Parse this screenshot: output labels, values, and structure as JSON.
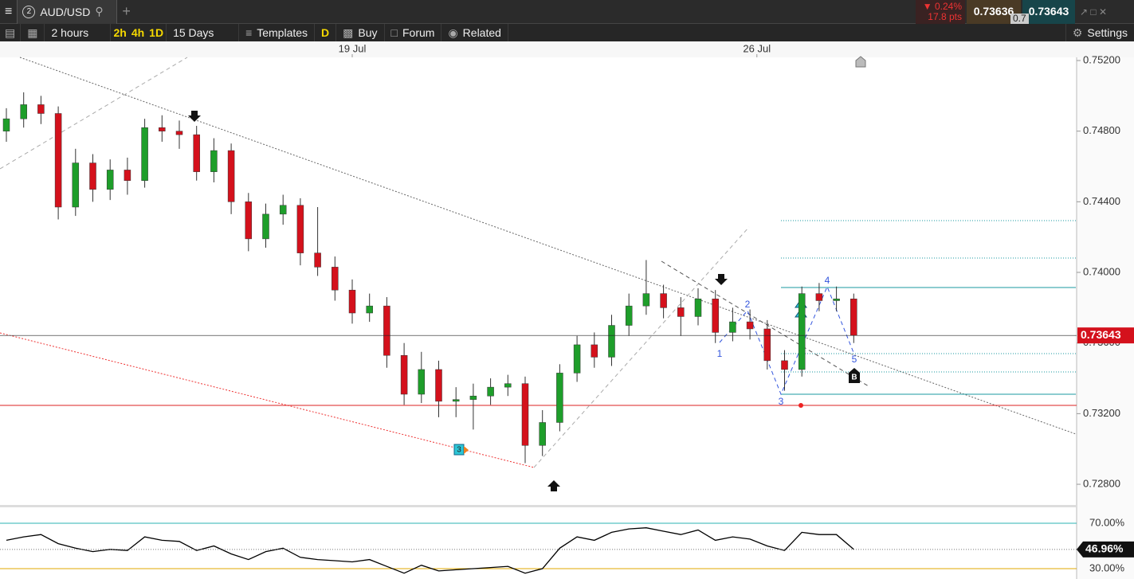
{
  "toolbar": {
    "tab_number": "2",
    "symbol": "AUD/USD",
    "change_pct": "0.24%",
    "change_pts": "17.8 pts",
    "sell": "0.73636",
    "buy": "0.73643",
    "spread": "0.7",
    "interval": "2 hours",
    "quick_intervals": [
      "2h",
      "4h",
      "1D"
    ],
    "range": "15 Days",
    "templates": "Templates",
    "d": "D",
    "buy_button": "Buy",
    "forum": "Forum",
    "related": "Related",
    "settings": "Settings"
  },
  "annotations": {
    "wave_labels": [
      "1",
      "2",
      "3",
      "4",
      "5"
    ],
    "badges": [
      "3",
      "B"
    ]
  },
  "chart_data": [
    {
      "type": "candlestick",
      "open": [
        0.748,
        0.7487,
        0.7495,
        0.749,
        0.7437,
        0.7462,
        0.7447,
        0.7458,
        0.7452,
        0.7482,
        0.748,
        0.7478,
        0.7457,
        0.7469,
        0.744,
        0.7419,
        0.7433,
        0.7438,
        0.7411,
        0.7403,
        0.739,
        0.7377,
        0.7381,
        0.7353,
        0.7331,
        0.7345,
        0.7327,
        0.7328,
        0.733,
        0.7335,
        0.7337,
        0.7302,
        0.7315,
        0.7343,
        0.7359,
        0.7352,
        0.737,
        0.7381,
        0.7388,
        0.738,
        0.7375,
        0.7385,
        0.7366,
        0.7372,
        0.7368,
        0.735,
        0.7345,
        0.7388,
        0.7384,
        0.7385
      ],
      "high": [
        0.7493,
        0.7502,
        0.75,
        0.7494,
        0.747,
        0.7467,
        0.7464,
        0.7465,
        0.7487,
        0.7489,
        0.7486,
        0.7483,
        0.7476,
        0.7473,
        0.7445,
        0.7439,
        0.7444,
        0.7442,
        0.7437,
        0.7409,
        0.7396,
        0.7388,
        0.7386,
        0.736,
        0.7355,
        0.735,
        0.7335,
        0.7337,
        0.734,
        0.7342,
        0.7341,
        0.7322,
        0.7348,
        0.7364,
        0.7366,
        0.7376,
        0.7388,
        0.7407,
        0.7393,
        0.7386,
        0.7391,
        0.739,
        0.738,
        0.7379,
        0.7373,
        0.7356,
        0.7392,
        0.7394,
        0.7392,
        0.7388
      ],
      "low": [
        0.7474,
        0.7482,
        0.7484,
        0.743,
        0.7432,
        0.744,
        0.7441,
        0.7444,
        0.7448,
        0.7474,
        0.747,
        0.7452,
        0.7451,
        0.7433,
        0.7412,
        0.7414,
        0.7427,
        0.7404,
        0.7398,
        0.7384,
        0.7371,
        0.7372,
        0.7346,
        0.7325,
        0.7326,
        0.7318,
        0.7318,
        0.7311,
        0.7325,
        0.733,
        0.7292,
        0.7296,
        0.731,
        0.7338,
        0.7346,
        0.7347,
        0.7364,
        0.7376,
        0.7374,
        0.7364,
        0.737,
        0.736,
        0.7361,
        0.7362,
        0.7345,
        0.7333,
        0.7341,
        0.7378,
        0.7378,
        0.736
      ],
      "close": [
        0.7487,
        0.7495,
        0.749,
        0.7437,
        0.7462,
        0.7447,
        0.7458,
        0.7452,
        0.7482,
        0.748,
        0.7478,
        0.7457,
        0.7469,
        0.744,
        0.7419,
        0.7433,
        0.7438,
        0.7411,
        0.7403,
        0.739,
        0.7377,
        0.7381,
        0.7353,
        0.7331,
        0.7345,
        0.7327,
        0.7328,
        0.733,
        0.7335,
        0.7337,
        0.7302,
        0.7315,
        0.7343,
        0.7359,
        0.7352,
        0.737,
        0.7381,
        0.7388,
        0.738,
        0.7375,
        0.7385,
        0.7366,
        0.7372,
        0.7368,
        0.735,
        0.7345,
        0.7388,
        0.7384,
        0.7385,
        0.73643
      ],
      "up_color": "#1e9e2a",
      "down_color": "#d4111c",
      "xticks": [
        {
          "value": 20,
          "label": "19 Jul"
        },
        {
          "value": 43.4,
          "label": "26 Jul"
        }
      ],
      "ylim": [
        0.72683,
        0.75218
      ],
      "yticks": [
        {
          "value": 0.752,
          "label": "0.75200"
        },
        {
          "value": 0.748,
          "label": "0.74800"
        },
        {
          "value": 0.744,
          "label": "0.74400"
        },
        {
          "value": 0.74,
          "label": "0.74000"
        },
        {
          "value": 0.736,
          "label": "0.73600"
        },
        {
          "value": 0.732,
          "label": "0.73200"
        },
        {
          "value": 0.728,
          "label": "0.72800"
        }
      ],
      "current": {
        "value": 0.73643,
        "label": "0.73643"
      }
    },
    {
      "type": "line",
      "color": "#000000",
      "values": [
        55,
        58,
        60,
        52,
        48,
        45,
        47,
        46,
        58,
        55,
        54,
        46,
        50,
        43,
        38,
        45,
        48,
        40,
        38,
        37,
        36,
        38,
        32,
        26,
        33,
        28,
        29,
        30,
        31,
        32,
        26,
        30,
        48,
        58,
        55,
        62,
        65,
        66,
        63,
        60,
        64,
        55,
        58,
        56,
        50,
        46,
        62,
        60,
        60,
        46.96
      ],
      "ylim": [
        20.9,
        84.0
      ],
      "yticks": [
        {
          "value": 70,
          "label": "70.00%"
        },
        {
          "value": 30,
          "label": "30.00%"
        }
      ],
      "tick_colors": [
        "#2bb3b3",
        "#e0a800"
      ],
      "current": {
        "value": 46.96,
        "label": "46.96%"
      }
    }
  ]
}
